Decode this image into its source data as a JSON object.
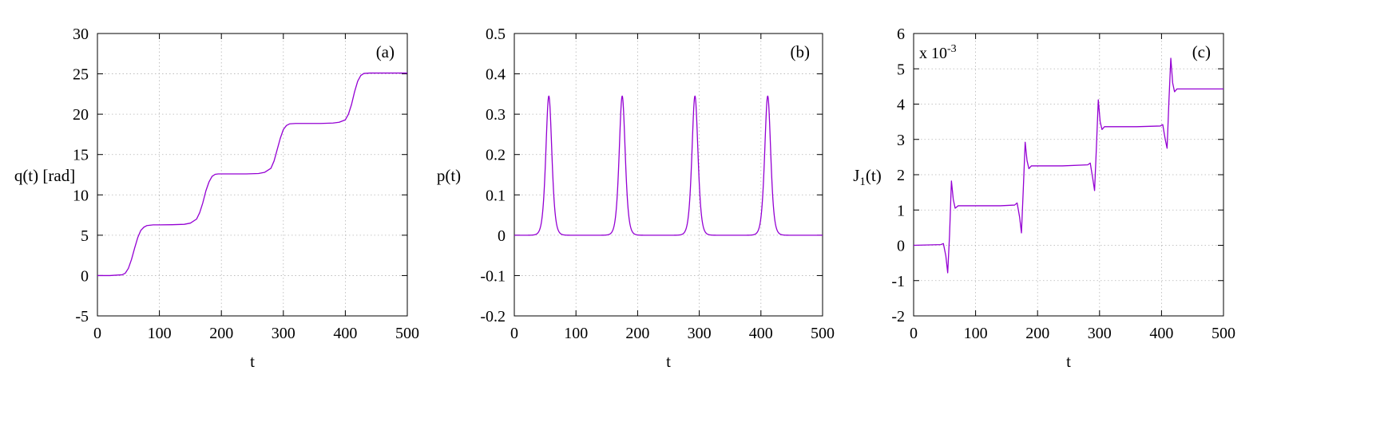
{
  "chart_data": [
    {
      "type": "line",
      "panel_label": "(a)",
      "xlabel": "t",
      "ylabel": "q(t) [rad]",
      "xlim": [
        0,
        500
      ],
      "ylim": [
        -5,
        30
      ],
      "xticks": [
        "0",
        "100",
        "200",
        "300",
        "400",
        "500"
      ],
      "yticks": [
        "-5",
        "0",
        "5",
        "10",
        "15",
        "20",
        "25",
        "30"
      ],
      "grid": true,
      "color": "#9400d3",
      "series": [
        {
          "x": [
            0,
            20,
            40,
            45,
            50,
            55,
            60,
            65,
            70,
            75,
            80,
            90,
            100,
            120,
            140,
            150,
            160,
            165,
            170,
            175,
            180,
            185,
            190,
            195,
            200,
            220,
            240,
            260,
            270,
            280,
            285,
            290,
            295,
            300,
            305,
            310,
            320,
            340,
            360,
            380,
            390,
            400,
            405,
            410,
            415,
            420,
            425,
            430,
            440,
            460,
            480,
            500
          ],
          "y": [
            0,
            0,
            0.1,
            0.3,
            0.9,
            2.0,
            3.4,
            4.7,
            5.6,
            6.0,
            6.2,
            6.28,
            6.28,
            6.3,
            6.35,
            6.5,
            7.0,
            7.8,
            9.0,
            10.5,
            11.6,
            12.3,
            12.55,
            12.6,
            12.6,
            12.6,
            12.6,
            12.65,
            12.8,
            13.3,
            14.2,
            15.6,
            17.0,
            18.1,
            18.6,
            18.8,
            18.85,
            18.85,
            18.85,
            18.9,
            19.0,
            19.3,
            20.0,
            21.2,
            22.8,
            24.1,
            24.8,
            25.05,
            25.1,
            25.1,
            25.1,
            25.1
          ]
        }
      ]
    },
    {
      "type": "line",
      "panel_label": "(b)",
      "xlabel": "t",
      "ylabel": "p(t)",
      "xlim": [
        0,
        500
      ],
      "ylim": [
        -0.2,
        0.5
      ],
      "xticks": [
        "0",
        "100",
        "200",
        "300",
        "400",
        "500"
      ],
      "yticks": [
        "-0.2",
        "-0.1",
        "0",
        "0.1",
        "0.2",
        "0.3",
        "0.4",
        "0.5"
      ],
      "grid": true,
      "color": "#9400d3",
      "peaks": [
        {
          "t": 56,
          "value": 0.345
        },
        {
          "t": 175,
          "value": 0.345
        },
        {
          "t": 293,
          "value": 0.345
        },
        {
          "t": 411,
          "value": 0.345
        }
      ],
      "peak_width": 6.5,
      "series_samples": 1000
    },
    {
      "type": "line",
      "panel_label": "(c)",
      "multiplier_label": "x 10",
      "multiplier_exponent": "-3",
      "xlabel": "t",
      "ylabel_main": "J",
      "ylabel_sub": "1",
      "ylabel_suffix": "(t)",
      "xlim": [
        0,
        500
      ],
      "ylim": [
        -2,
        6
      ],
      "xticks": [
        "0",
        "100",
        "200",
        "300",
        "400",
        "500"
      ],
      "yticks": [
        "-2",
        "-1",
        "0",
        "1",
        "2",
        "3",
        "4",
        "5",
        "6"
      ],
      "grid": true,
      "color": "#9400d3",
      "series": [
        {
          "x": [
            0,
            44,
            48,
            52,
            55,
            58,
            61,
            64,
            67,
            72,
            80,
            100,
            140,
            163,
            167,
            171,
            174,
            177,
            180,
            183,
            186,
            190,
            200,
            240,
            281,
            285,
            289,
            292,
            295,
            298,
            301,
            304,
            308,
            320,
            360,
            398,
            402,
            406,
            409,
            412,
            415,
            418,
            421,
            425,
            440,
            480,
            500
          ],
          "y": [
            0,
            0.02,
            0.05,
            -0.3,
            -0.78,
            0.3,
            1.82,
            1.3,
            1.05,
            1.12,
            1.12,
            1.12,
            1.12,
            1.14,
            1.2,
            0.8,
            0.35,
            1.6,
            2.92,
            2.4,
            2.17,
            2.25,
            2.25,
            2.25,
            2.28,
            2.33,
            1.9,
            1.55,
            2.8,
            4.12,
            3.5,
            3.28,
            3.36,
            3.36,
            3.36,
            3.38,
            3.42,
            3.0,
            2.75,
            4.1,
            5.3,
            4.6,
            4.35,
            4.43,
            4.43,
            4.43,
            4.43
          ]
        }
      ]
    }
  ]
}
